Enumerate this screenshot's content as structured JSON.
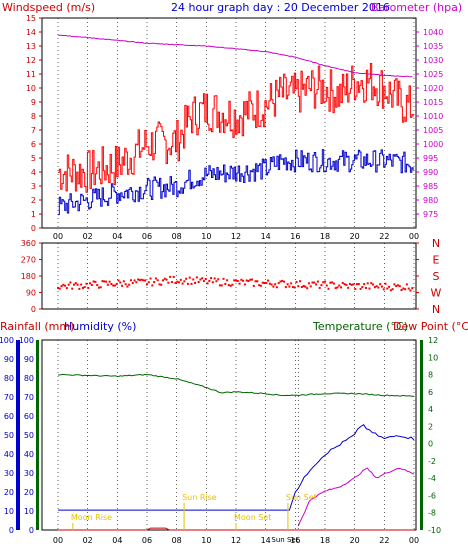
{
  "header": {
    "left_label": "Windspeed (m/s)",
    "title": "24 hour graph day : 20 December 2016",
    "right_label": "Barometer (hpa)"
  },
  "colors": {
    "wind": "#ff0000",
    "gust": "#0000cc",
    "baro": "#cc00cc",
    "dir": "#ff0000",
    "rain": "#cc0000",
    "humidity": "#0000cc",
    "temp": "#006600",
    "dew": "#cc00cc",
    "left_axis": "#cc0000",
    "right_axis_pink": "#cc00cc",
    "right_axis_green": "#006600",
    "astro": "#e6c200"
  },
  "chart_data": [
    {
      "type": "line",
      "panel": "wind",
      "x_ticks": [
        "00",
        "02",
        "04",
        "06",
        "08",
        "10",
        "12",
        "14",
        "16",
        "18",
        "20",
        "22",
        "00"
      ],
      "y_left": {
        "label": "Windspeed (m/s)",
        "min": 0,
        "max": 15,
        "ticks": [
          "0",
          "1",
          "2",
          "3",
          "4",
          "5",
          "6",
          "7",
          "8",
          "9",
          "10",
          "11",
          "12",
          "13",
          "14",
          "15"
        ]
      },
      "y_right": {
        "label": "Barometer (hpa)",
        "min": 970,
        "max": 1045,
        "ticks": [
          "975",
          "980",
          "985",
          "990",
          "995",
          "1000",
          "1005",
          "1010",
          "1015",
          "1020",
          "1025",
          "1030",
          "1035",
          "1040"
        ]
      },
      "series": [
        {
          "name": "",
          "role": "wind_max",
          "axis": "left",
          "x": [
            0,
            2,
            4,
            6,
            8,
            9,
            10,
            12,
            14,
            15,
            16,
            17,
            18,
            19,
            20,
            21,
            22,
            23,
            24
          ],
          "values": [
            4.0,
            4.0,
            4.5,
            6.0,
            6.2,
            8.0,
            8.5,
            8.0,
            8.8,
            9.5,
            9.5,
            10.0,
            10.0,
            9.5,
            10.5,
            10.5,
            10.0,
            9.0,
            8.5
          ]
        },
        {
          "name": "",
          "role": "wind_avg",
          "axis": "left",
          "x": [
            0,
            2,
            4,
            6,
            8,
            9,
            10,
            12,
            14,
            15,
            16,
            17,
            18,
            19,
            20,
            21,
            22,
            23,
            24
          ],
          "values": [
            1.5,
            2.0,
            2.5,
            2.8,
            3.0,
            3.5,
            3.8,
            4.0,
            4.2,
            4.8,
            4.8,
            4.8,
            4.8,
            4.8,
            4.8,
            4.8,
            4.8,
            4.7,
            4.5
          ]
        },
        {
          "name": "",
          "role": "barometer",
          "axis": "right",
          "x": [
            0,
            2,
            4,
            6,
            8,
            10,
            12,
            14,
            16,
            18,
            20,
            22,
            24
          ],
          "values": [
            1039.0,
            1038.0,
            1037.0,
            1036.0,
            1035.5,
            1035.0,
            1034.0,
            1033.0,
            1031.0,
            1028.0,
            1025.5,
            1024.5,
            1024.0
          ]
        }
      ]
    },
    {
      "type": "scatter",
      "panel": "direction",
      "y_left": {
        "min": 0,
        "max": 360,
        "ticks": [
          "0",
          "90",
          "180",
          "270",
          "360"
        ]
      },
      "y_right": {
        "ticks": [
          "N",
          "W",
          "S",
          "E",
          "N"
        ]
      },
      "series": [
        {
          "name": "",
          "role": "wind_direction",
          "x": [
            0,
            2,
            4,
            6,
            8,
            10,
            12,
            14,
            16,
            18,
            20,
            22,
            24
          ],
          "values": [
            125,
            130,
            140,
            145,
            160,
            150,
            145,
            140,
            135,
            130,
            125,
            122,
            120
          ]
        }
      ]
    },
    {
      "type": "line",
      "panel": "rain_hum_temp",
      "y_left_rain": {
        "label": "Rainfall (mm)",
        "min": 0,
        "max": 100,
        "ticks": [
          "0",
          "10",
          "20",
          "30",
          "40",
          "50",
          "60",
          "70",
          "80",
          "90",
          "100"
        ]
      },
      "y_left_humidity": {
        "label": "Humidity (%)",
        "min": 0,
        "max": 100,
        "ticks": [
          "0",
          "10",
          "20",
          "30",
          "40",
          "50",
          "60",
          "70",
          "80",
          "90",
          "100"
        ]
      },
      "y_right": {
        "label_temp": "Temperature (°C)",
        "label_dew": "Dew Point (°C)",
        "min": -10,
        "max": 12,
        "ticks": [
          "-10",
          "-8",
          "-6",
          "-4",
          "-2",
          "0",
          "2",
          "4",
          "6",
          "8",
          "10",
          "12"
        ]
      },
      "x_ticks": [
        "00",
        "02",
        "04",
        "06",
        "08",
        "10",
        "12",
        "14",
        "16",
        "18",
        "20",
        "22",
        "00"
      ],
      "series": [
        {
          "name": "",
          "role": "rainfall_cumulative",
          "axis": "left_rain",
          "x": [
            0,
            15.6,
            16.0,
            17,
            18,
            19,
            20,
            20.5,
            21,
            22,
            23,
            24
          ],
          "values": [
            10.5,
            10.5,
            20,
            32,
            40,
            45,
            50,
            56,
            52,
            48,
            50,
            48
          ]
        },
        {
          "name": "",
          "role": "humidity",
          "axis": "left_humidity",
          "x": [
            0,
            6,
            6.5,
            7,
            16
          ],
          "values": [
            0,
            0,
            1,
            0,
            0
          ]
        },
        {
          "name": "",
          "role": "temperature",
          "axis": "right",
          "x": [
            0,
            4,
            6,
            8,
            10,
            11,
            12,
            14,
            15,
            16,
            18,
            20,
            22,
            24
          ],
          "values": [
            8.0,
            7.8,
            8.0,
            7.5,
            6.5,
            5.9,
            6.0,
            5.8,
            5.6,
            5.6,
            5.8,
            5.8,
            5.6,
            5.5
          ]
        },
        {
          "name": "",
          "role": "dew_point",
          "axis": "right",
          "x": [
            16.2,
            17,
            18,
            19,
            20,
            20.8,
            21.5,
            22,
            23,
            24
          ],
          "values": [
            -9.5,
            -6.5,
            -5.5,
            -5.0,
            -4.0,
            -2.8,
            -4.0,
            -3.5,
            -2.8,
            -3.5
          ]
        }
      ],
      "annotations": [
        {
          "text": "Moon Rise",
          "x_hour": 1.0,
          "level": "low"
        },
        {
          "text": "Sun Rise",
          "x_hour": 8.5,
          "level": "high"
        },
        {
          "text": "Moon Set",
          "x_hour": 12.0,
          "level": "low"
        },
        {
          "text": "Sun Set",
          "x_hour": 15.5,
          "level": "high"
        },
        {
          "text": "Sun Set",
          "x_hour": 15.5,
          "level": "bottom"
        }
      ]
    }
  ]
}
